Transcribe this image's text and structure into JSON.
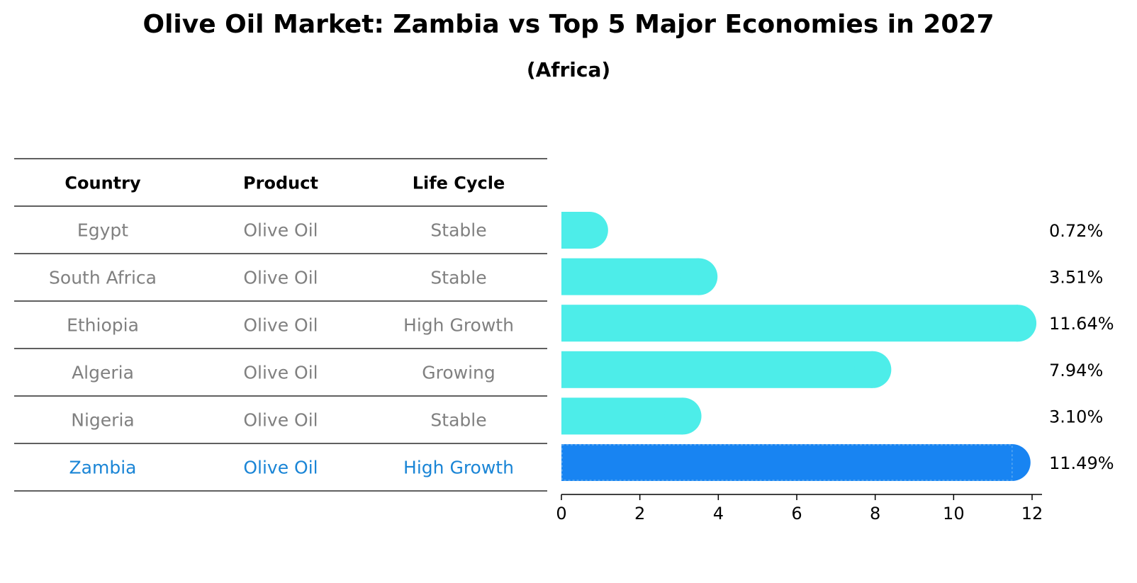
{
  "chart_data": {
    "type": "bar",
    "orientation": "horizontal",
    "title": "Olive Oil Market: Zambia vs Top 5 Major Economies in 2027",
    "subtitle": "(Africa)",
    "table": {
      "columns": [
        "Country",
        "Product",
        "Life Cycle"
      ],
      "rows": [
        [
          "Egypt",
          "Olive Oil",
          "Stable"
        ],
        [
          "South Africa",
          "Olive Oil",
          "Stable"
        ],
        [
          "Ethiopia",
          "Olive Oil",
          "High Growth"
        ],
        [
          "Algeria",
          "Olive Oil",
          "Growing"
        ],
        [
          "Nigeria",
          "Olive Oil",
          "Stable"
        ],
        [
          "Zambia",
          "Olive Oil",
          "High Growth"
        ]
      ]
    },
    "categories": [
      "Egypt",
      "South Africa",
      "Ethiopia",
      "Algeria",
      "Nigeria",
      "Zambia"
    ],
    "values": [
      0.72,
      3.51,
      11.64,
      7.94,
      3.1,
      11.49
    ],
    "value_labels": [
      "0.72%",
      "3.51%",
      "11.64%",
      "7.94%",
      "3.10%",
      "11.49%"
    ],
    "highlight_index": 5,
    "xlim": [
      0,
      12
    ],
    "xticks": [
      "0",
      "2",
      "4",
      "6",
      "8",
      "10",
      "12"
    ],
    "xlabel": "",
    "ylabel": "",
    "grid": false,
    "colors": {
      "bar": "#4dede9",
      "highlight_bar": "#1884f2",
      "highlight_text": "#1a85d6",
      "muted_text": "#808080"
    }
  }
}
